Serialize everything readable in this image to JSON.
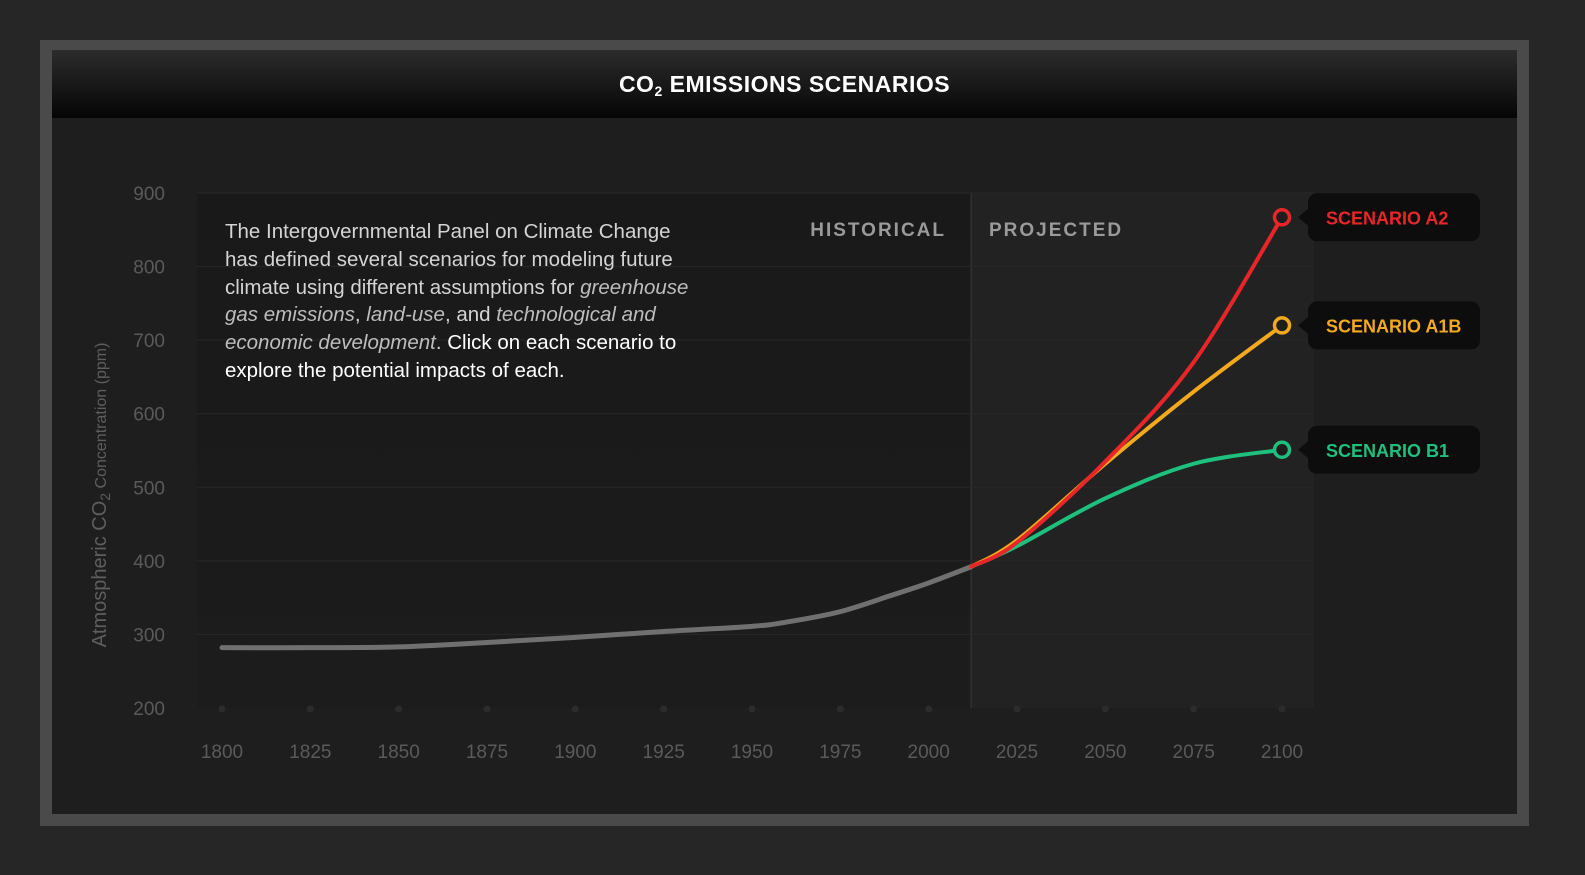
{
  "header": {
    "title_prefix": "CO",
    "title_sub": "2",
    "title_suffix": " EMISSIONS SCENARIOS"
  },
  "description": {
    "part1": "The Intergovernmental Panel on Climate Change has defined several scenarios for modeling future climate using different assumptions for ",
    "em1": "greenhouse gas emissions",
    "part2": ", ",
    "em2": "land-use",
    "part3": ", and ",
    "em3": "technological and economic development",
    "part4": ". ",
    "cta": "Click on each scenario to explore the potential impacts of each."
  },
  "regions": {
    "historical": "HISTORICAL",
    "projected": "PROJECTED"
  },
  "chart_data": {
    "type": "line",
    "ylabel_prefix": "Atmospheric CO",
    "ylabel_sub": "2",
    "ylabel_suffix": " Concentration (ppm)",
    "xlim": [
      1800,
      2100
    ],
    "ylim": [
      200,
      900
    ],
    "yticks": [
      200,
      300,
      400,
      500,
      600,
      700,
      800,
      900
    ],
    "xticks": [
      1800,
      1825,
      1850,
      1875,
      1900,
      1925,
      1950,
      1975,
      2000,
      2025,
      2050,
      2075,
      2100
    ],
    "divider_x": 2012,
    "grid": true,
    "historical": {
      "color": "#7a7a7a",
      "x": [
        1800,
        1825,
        1850,
        1875,
        1900,
        1925,
        1950,
        1960,
        1975,
        1990,
        2000,
        2012
      ],
      "y": [
        282,
        282,
        283,
        289,
        296,
        304,
        311,
        317,
        331,
        354,
        370,
        392
      ]
    },
    "series": [
      {
        "name": "SCENARIO A2",
        "color": "#e8262a",
        "x": [
          2012,
          2025,
          2050,
          2075,
          2100
        ],
        "y": [
          392,
          425,
          535,
          670,
          867
        ]
      },
      {
        "name": "SCENARIO A1B",
        "color": "#f2a91e",
        "x": [
          2012,
          2025,
          2050,
          2075,
          2100
        ],
        "y": [
          392,
          428,
          532,
          630,
          720
        ]
      },
      {
        "name": "SCENARIO B1",
        "color": "#1fc07d",
        "x": [
          2012,
          2025,
          2050,
          2075,
          2100
        ],
        "y": [
          392,
          420,
          485,
          532,
          551
        ]
      }
    ]
  }
}
